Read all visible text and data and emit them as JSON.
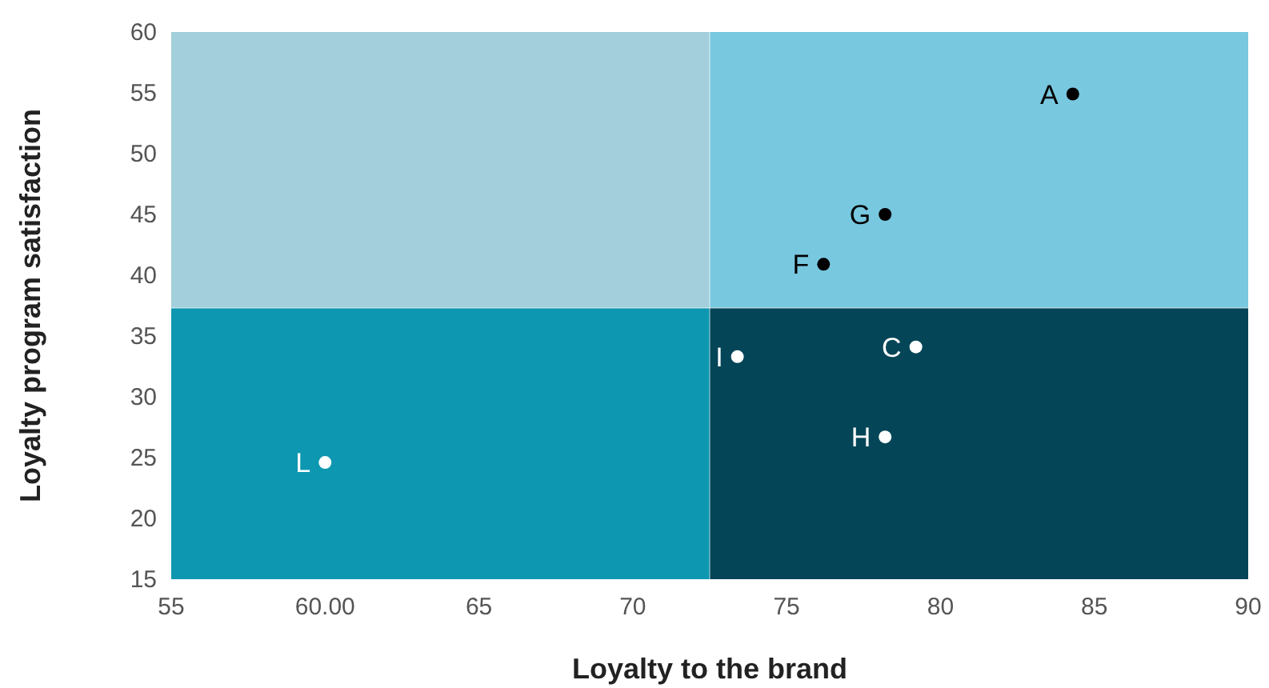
{
  "chart_data": {
    "type": "scatter",
    "xlabel": "Loyalty to the brand",
    "ylabel": "Loyalty program satisfaction",
    "x": [
      84.3,
      78.2,
      76.2,
      73.4,
      79.2,
      78.2,
      60.0
    ],
    "values": [
      54.9,
      45,
      40.9,
      33.3,
      34.1,
      26.7,
      24.6
    ],
    "colors": [
      "#000000",
      "#000000",
      "#000000",
      "#ffffff",
      "#ffffff",
      "#ffffff",
      "#ffffff"
    ],
    "annotations": [
      {
        "text": "A",
        "x": 84.3,
        "y": 54.9
      },
      {
        "text": "G",
        "x": 78.2,
        "y": 45
      },
      {
        "text": "F",
        "x": 76.2,
        "y": 40.9
      },
      {
        "text": "I",
        "x": 73.4,
        "y": 33.3
      },
      {
        "text": "C",
        "x": 79.2,
        "y": 34.1
      },
      {
        "text": "H",
        "x": 78.2,
        "y": 26.7
      },
      {
        "text": "L",
        "x": 60.0,
        "y": 24.6
      }
    ],
    "bands": [
      {
        "axis": "x",
        "from": 55,
        "to": 72.5,
        "color": "#a2cfdb"
      },
      {
        "axis": "x",
        "from": 72.5,
        "to": 90,
        "color": "#78c8e0"
      },
      {
        "axis": "x",
        "from": 55,
        "to": 72.5,
        "color": "#0e97b0"
      },
      {
        "axis": "x",
        "from": 72.5,
        "to": 90,
        "color": "#044557"
      }
    ],
    "ref_lines": [
      {
        "axis": "x",
        "value": 72.5
      },
      {
        "axis": "y",
        "value": 37.3
      }
    ],
    "xlim": [
      55,
      90
    ],
    "xticks": [
      55,
      {
        "value": 60,
        "label": "60.00"
      },
      65,
      70,
      75,
      80,
      85,
      90
    ],
    "ylim": [
      15,
      60
    ],
    "yticks": [
      15,
      20,
      25,
      30,
      35,
      40,
      45,
      50,
      55,
      60
    ],
    "marker": "circle",
    "grid": false
  }
}
